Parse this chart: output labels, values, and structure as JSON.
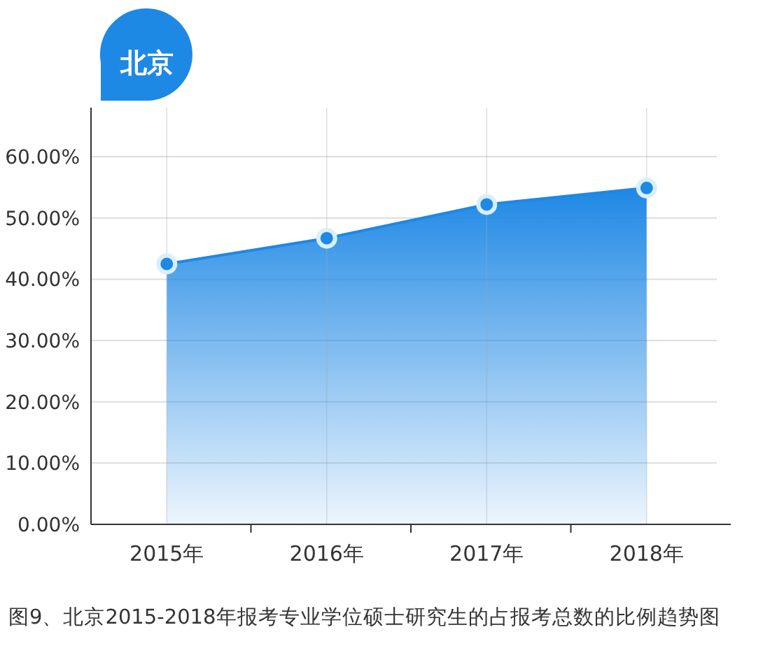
{
  "chart_data": {
    "type": "area",
    "title": "北京",
    "categories": [
      "2015年",
      "2016年",
      "2017年",
      "2018年"
    ],
    "series": [
      {
        "color": "#1e88e5",
        "values": [
          42.5,
          46.7,
          52.2,
          54.9
        ]
      }
    ],
    "ylim": [
      0,
      68
    ],
    "yticks": [
      {
        "value": 0,
        "label": "0.00%"
      },
      {
        "value": 10,
        "label": "10.00%"
      },
      {
        "value": 20,
        "label": "20.00%"
      },
      {
        "value": 30,
        "label": "30.00%"
      },
      {
        "value": 40,
        "label": "40.00%"
      },
      {
        "value": 50,
        "label": "50.00%"
      },
      {
        "value": 60,
        "label": "60.00%"
      }
    ],
    "grid": true,
    "marker": "circle",
    "annotations": [
      "图9、北京2015-2018年报考专业学位硕士研究生的占报考总数的比例趋势图"
    ]
  }
}
